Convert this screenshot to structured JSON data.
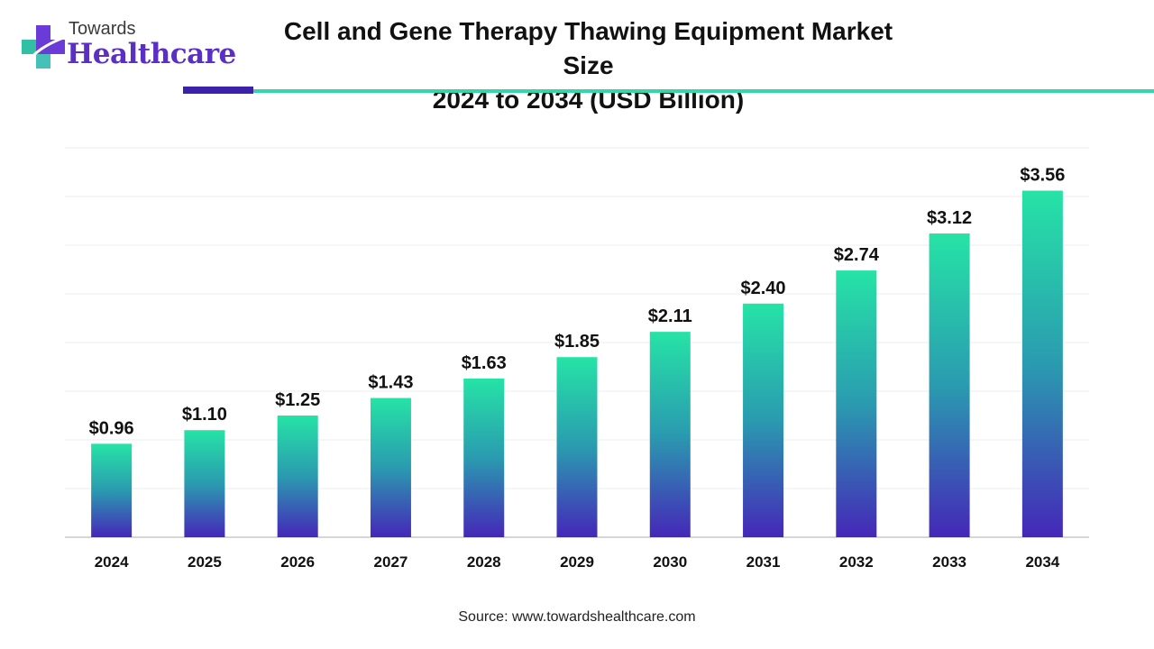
{
  "header": {
    "logo_top": "Towards",
    "logo_bottom": "Healthcare",
    "title_line1": "Cell and Gene Therapy Thawing Equipment Market Size",
    "title_line2": "2024 to 2034 (USD Billion)"
  },
  "footer": {
    "source": "Source: www.towardshealthcare.com"
  },
  "colors": {
    "bar_top": "#26e3a6",
    "bar_mid": "#2a9bb0",
    "bar_bottom": "#4527b8",
    "accent_purple": "#3b22a8",
    "accent_teal": "#35d6aa",
    "brand": "#5b2fc4"
  },
  "chart_data": {
    "type": "bar",
    "title": "Cell and Gene Therapy Thawing Equipment Market Size 2024 to 2034 (USD Billion)",
    "categories": [
      "2024",
      "2025",
      "2026",
      "2027",
      "2028",
      "2029",
      "2030",
      "2031",
      "2032",
      "2033",
      "2034"
    ],
    "values": [
      0.96,
      1.1,
      1.25,
      1.43,
      1.63,
      1.85,
      2.11,
      2.4,
      2.74,
      3.12,
      3.56
    ],
    "value_labels": [
      "$0.96",
      "$1.10",
      "$1.25",
      "$1.43",
      "$1.63",
      "$1.85",
      "$2.11",
      "$2.40",
      "$2.74",
      "$3.12",
      "$3.56"
    ],
    "xlabel": "",
    "ylabel": "",
    "ylim": [
      0,
      4
    ],
    "grid": true,
    "legend": "none"
  }
}
